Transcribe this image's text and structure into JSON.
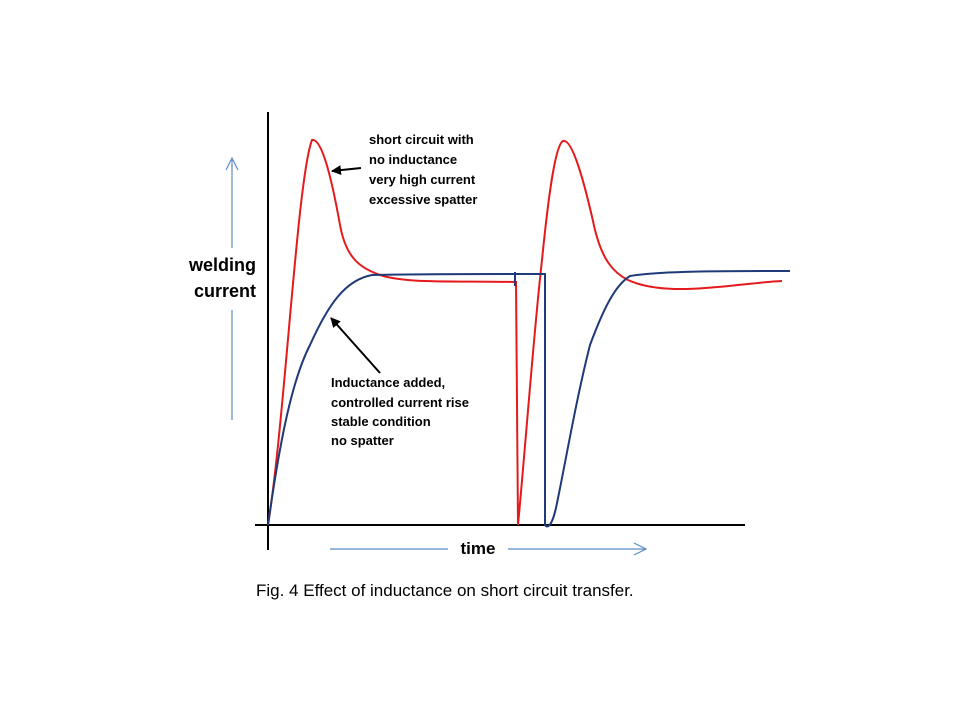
{
  "axes": {
    "y_label_line1": "welding",
    "y_label_line2": "current",
    "x_label": "time"
  },
  "annotations": {
    "no_inductance": [
      "short circuit with",
      "no inductance",
      "very high current",
      "excessive spatter"
    ],
    "inductance_added": [
      "Inductance added,",
      "controlled current rise",
      "stable condition",
      "no spatter"
    ]
  },
  "caption": "Fig. 4 Effect of inductance on short circuit transfer.",
  "colors": {
    "no_inductance_curve": "#e41a1c",
    "inductance_curve": "#1f3a78",
    "guide_arrows": "#5b8cc5",
    "axes": "#000000"
  }
}
